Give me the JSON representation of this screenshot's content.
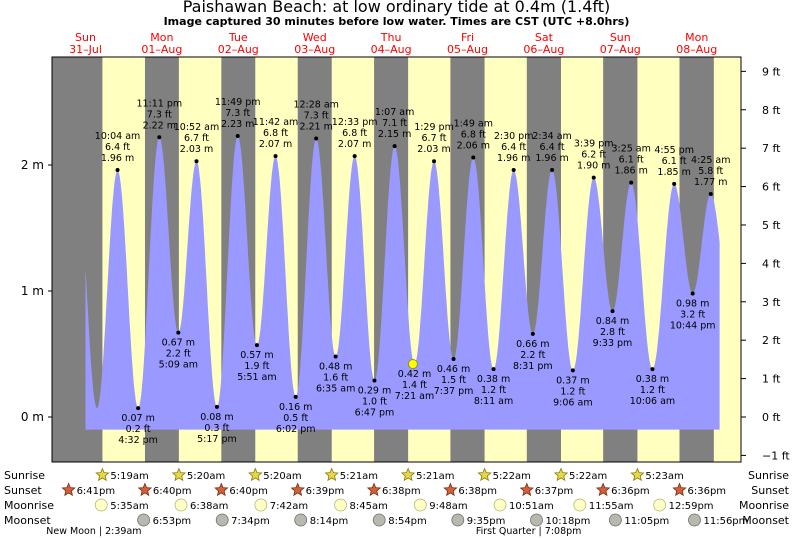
{
  "title": "Paishawan Beach: at low  ordinary tide at 0.4m (1.4ft)",
  "subtitle": "Image captured 30 minutes before low water. Times are CST (UTC +8.0hrs)",
  "colors": {
    "day": "#ffffc0",
    "night": "#808080",
    "tide": "#9999ff",
    "date_label": "#ff0000",
    "frame": "#000000"
  },
  "chart_data": {
    "type": "area",
    "title": "Paishawan Beach: at low  ordinary tide at 0.4m (1.4ft)",
    "x_unit": "days from Sun 31-Jul 00:00 CST",
    "xlim": [
      -0.5,
      8.5
    ],
    "ylim_m": [
      -0.4,
      2.84
    ],
    "left_axis": {
      "unit": "m",
      "ticks": [
        {
          "v": 0,
          "label": "0 m"
        },
        {
          "v": 1,
          "label": "1 m"
        },
        {
          "v": 2,
          "label": "2 m"
        }
      ]
    },
    "right_axis": {
      "unit": "ft",
      "ticks": [
        {
          "v": -1,
          "label": "−1 ft"
        },
        {
          "v": 0,
          "label": "0 ft"
        },
        {
          "v": 1,
          "label": "1 ft"
        },
        {
          "v": 2,
          "label": "2 ft"
        },
        {
          "v": 3,
          "label": "3 ft"
        },
        {
          "v": 4,
          "label": "4 ft"
        },
        {
          "v": 5,
          "label": "5 ft"
        },
        {
          "v": 6,
          "label": "6 ft"
        },
        {
          "v": 7,
          "label": "7 ft"
        },
        {
          "v": 8,
          "label": "8 ft"
        },
        {
          "v": 9,
          "label": "9 ft"
        }
      ]
    },
    "days": [
      {
        "dow": "Sun",
        "date": "31–Jul",
        "x": 0
      },
      {
        "dow": "Mon",
        "date": "01–Aug",
        "x": 1
      },
      {
        "dow": "Tue",
        "date": "02–Aug",
        "x": 2
      },
      {
        "dow": "Wed",
        "date": "03–Aug",
        "x": 3
      },
      {
        "dow": "Thu",
        "date": "04–Aug",
        "x": 4
      },
      {
        "dow": "Fri",
        "date": "05–Aug",
        "x": 5
      },
      {
        "dow": "Sat",
        "date": "06–Aug",
        "x": 6
      },
      {
        "dow": "Sun",
        "date": "07–Aug",
        "x": 7
      },
      {
        "dow": "Mon",
        "date": "08–Aug",
        "x": 8
      }
    ],
    "extremes": [
      {
        "x": 0.4194,
        "m": 1.96,
        "lines": [
          "10:04 am",
          "6.4 ft",
          "1.96 m"
        ],
        "kind": "high"
      },
      {
        "x": 0.6889,
        "m": 0.07,
        "lines": [
          "0.07 m",
          "0.2 ft",
          "4:32 pm"
        ],
        "kind": "low"
      },
      {
        "x": 0.966,
        "m": 2.22,
        "lines": [
          "11:11 pm",
          "7.3 ft",
          "2.22 m"
        ],
        "kind": "high"
      },
      {
        "x": 1.2146,
        "m": 0.67,
        "lines": [
          "0.67 m",
          "2.2 ft",
          "5:09 am"
        ],
        "kind": "low"
      },
      {
        "x": 1.4528,
        "m": 2.03,
        "lines": [
          "10:52 am",
          "6.7 ft",
          "2.03 m"
        ],
        "kind": "high"
      },
      {
        "x": 1.7201,
        "m": 0.08,
        "lines": [
          "0.08 m",
          "0.3 ft",
          "5:17 pm"
        ],
        "kind": "low"
      },
      {
        "x": 1.9924,
        "m": 2.23,
        "lines": [
          "11:49 pm",
          "7.3 ft",
          "2.23 m"
        ],
        "kind": "high"
      },
      {
        "x": 2.2438,
        "m": 0.57,
        "lines": [
          "0.57 m",
          "1.9 ft",
          "5:51 am"
        ],
        "kind": "low"
      },
      {
        "x": 2.4875,
        "m": 2.07,
        "lines": [
          "11:42 am",
          "6.8 ft",
          "2.07 m"
        ],
        "kind": "high"
      },
      {
        "x": 2.7514,
        "m": 0.16,
        "lines": [
          "0.16 m",
          "0.5 ft",
          "6:02 pm"
        ],
        "kind": "low"
      },
      {
        "x": 3.0194,
        "m": 2.21,
        "lines": [
          "12:28 am",
          "7.3 ft",
          "2.21 m"
        ],
        "kind": "high"
      },
      {
        "x": 3.2743,
        "m": 0.48,
        "lines": [
          "0.48 m",
          "1.6 ft",
          "6:35 am"
        ],
        "kind": "low"
      },
      {
        "x": 3.5229,
        "m": 2.07,
        "lines": [
          "12:33 pm",
          "6.8 ft",
          "2.07 m"
        ],
        "kind": "high"
      },
      {
        "x": 3.7826,
        "m": 0.29,
        "lines": [
          "0.29 m",
          "1.0 ft",
          "6:47 pm"
        ],
        "kind": "low"
      },
      {
        "x": 4.0465,
        "m": 2.15,
        "lines": [
          "1:07 am",
          "7.1 ft",
          "2.15 m"
        ],
        "kind": "high"
      },
      {
        "x": 4.3063,
        "m": 0.42,
        "lines": [
          "0.42 m",
          "1.4 ft",
          "7:21 am"
        ],
        "kind": "low"
      },
      {
        "x": 4.5618,
        "m": 2.03,
        "lines": [
          "1:29 pm",
          "6.7 ft",
          "2.03 m"
        ],
        "kind": "high"
      },
      {
        "x": 4.8174,
        "m": 0.46,
        "lines": [
          "0.46 m",
          "1.5 ft",
          "7:37 pm"
        ],
        "kind": "low"
      },
      {
        "x": 5.0757,
        "m": 2.06,
        "lines": [
          "1:49 am",
          "6.8 ft",
          "2.06 m"
        ],
        "kind": "high"
      },
      {
        "x": 5.341,
        "m": 0.38,
        "lines": [
          "0.38 m",
          "1.2 ft",
          "8:11 am"
        ],
        "kind": "low"
      },
      {
        "x": 5.6042,
        "m": 1.96,
        "lines": [
          "2:30 pm",
          "6.4 ft",
          "1.96 m"
        ],
        "kind": "high"
      },
      {
        "x": 5.8549,
        "m": 0.66,
        "lines": [
          "0.66 m",
          "2.2 ft",
          "8:31 pm"
        ],
        "kind": "low"
      },
      {
        "x": 6.1069,
        "m": 1.96,
        "lines": [
          "2:34 am",
          "6.4 ft",
          "1.96 m"
        ],
        "kind": "high"
      },
      {
        "x": 6.3792,
        "m": 0.37,
        "lines": [
          "0.37 m",
          "1.2 ft",
          "9:06 am"
        ],
        "kind": "low"
      },
      {
        "x": 6.6521,
        "m": 1.9,
        "lines": [
          "3:39 pm",
          "6.2 ft",
          "1.90 m"
        ],
        "kind": "high"
      },
      {
        "x": 6.8979,
        "m": 0.84,
        "lines": [
          "0.84 m",
          "2.8 ft",
          "9:33 pm"
        ],
        "kind": "low"
      },
      {
        "x": 7.1424,
        "m": 1.86,
        "lines": [
          "3:25 am",
          "6.1 ft",
          "1.86 m"
        ],
        "kind": "high"
      },
      {
        "x": 7.4208,
        "m": 0.38,
        "lines": [
          "0.38 m",
          "1.2 ft",
          "10:06 am"
        ],
        "kind": "low"
      },
      {
        "x": 7.7049,
        "m": 1.85,
        "lines": [
          "4:55 pm",
          "6.1 ft",
          "1.85 m"
        ],
        "kind": "high"
      },
      {
        "x": 7.9472,
        "m": 0.98,
        "lines": [
          "0.98 m",
          "3.2 ft",
          "10:44 pm"
        ],
        "kind": "low"
      },
      {
        "x": 8.184,
        "m": 1.77,
        "lines": [
          "4:25 am",
          "5.8 ft",
          "1.77 m"
        ],
        "kind": "high"
      }
    ],
    "tide_curve_range_days": [
      0,
      8.3
    ],
    "current_marker": {
      "x": 4.2854,
      "m": 0.42
    },
    "sunrise": [
      "5:19am",
      "5:20am",
      "5:20am",
      "5:21am",
      "5:21am",
      "5:22am",
      "5:22am",
      "5:23am"
    ],
    "sunset": [
      "6:41pm",
      "6:40pm",
      "6:40pm",
      "6:39pm",
      "6:38pm",
      "6:38pm",
      "6:37pm",
      "6:36pm",
      "6:36pm"
    ],
    "moonrise": [
      "5:35am",
      "6:38am",
      "7:42am",
      "8:45am",
      "9:48am",
      "10:51am",
      "11:55am",
      "12:59pm"
    ],
    "moonset": [
      "6:53pm",
      "7:34pm",
      "8:14pm",
      "8:54pm",
      "9:35pm",
      "10:18pm",
      "11:05pm",
      "11:56pm"
    ],
    "moon_phases": [
      {
        "label": "New Moon | 2:39am",
        "x": 0.11
      },
      {
        "label": "First Quarter | 7:08pm",
        "x": 5.8
      }
    ],
    "row_labels": {
      "sunrise": "Sunrise",
      "sunset": "Sunset",
      "moonrise": "Moonrise",
      "moonset": "Moonset"
    }
  }
}
